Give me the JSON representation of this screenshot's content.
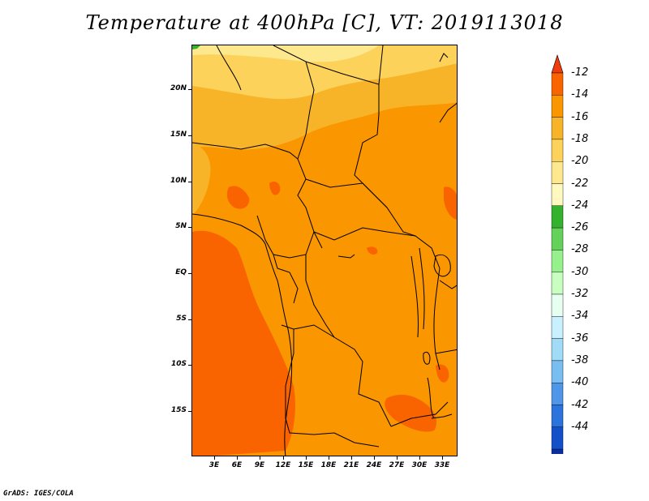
{
  "title": "Temperature at 400hPa [C], VT: 2019113018",
  "credit": "GrADS: IGES/COLA",
  "map": {
    "region": "Central Africa",
    "lat_range": [
      -20,
      25
    ],
    "lon_range": [
      0,
      35
    ],
    "x_tick_labels": [
      "3E",
      "6E",
      "9E",
      "12E",
      "15E",
      "18E",
      "21E",
      "24E",
      "27E",
      "30E",
      "33E"
    ],
    "y_tick_labels": [
      "20N",
      "15N",
      "10N",
      "5N",
      "EQ",
      "5S",
      "10S",
      "15S"
    ]
  },
  "colorbar": {
    "labels": [
      "-12",
      "-14",
      "-16",
      "-18",
      "-20",
      "-22",
      "-24",
      "-26",
      "-28",
      "-30",
      "-32",
      "-34",
      "-36",
      "-38",
      "-40",
      "-42",
      "-44"
    ],
    "colors": [
      "#f03c0a",
      "#fa6400",
      "#fa9600",
      "#f8b428",
      "#fcd25a",
      "#fee88e",
      "#fff9c0",
      "#34b22e",
      "#64d25a",
      "#96f08c",
      "#c8ffc0",
      "#e6fff0",
      "#c8f0ff",
      "#a0dcf8",
      "#78bef0",
      "#5096e8",
      "#2d73dc",
      "#1450c8",
      "#0a2da0",
      "#100a78",
      "#e0e0ff"
    ]
  },
  "field_colors": {
    "warmest": "#fa6400",
    "warm": "#fa9600",
    "mid": "#f8b428",
    "cool": "#fcd25a",
    "coolest": "#fee88e",
    "spot": "#34b22e"
  }
}
